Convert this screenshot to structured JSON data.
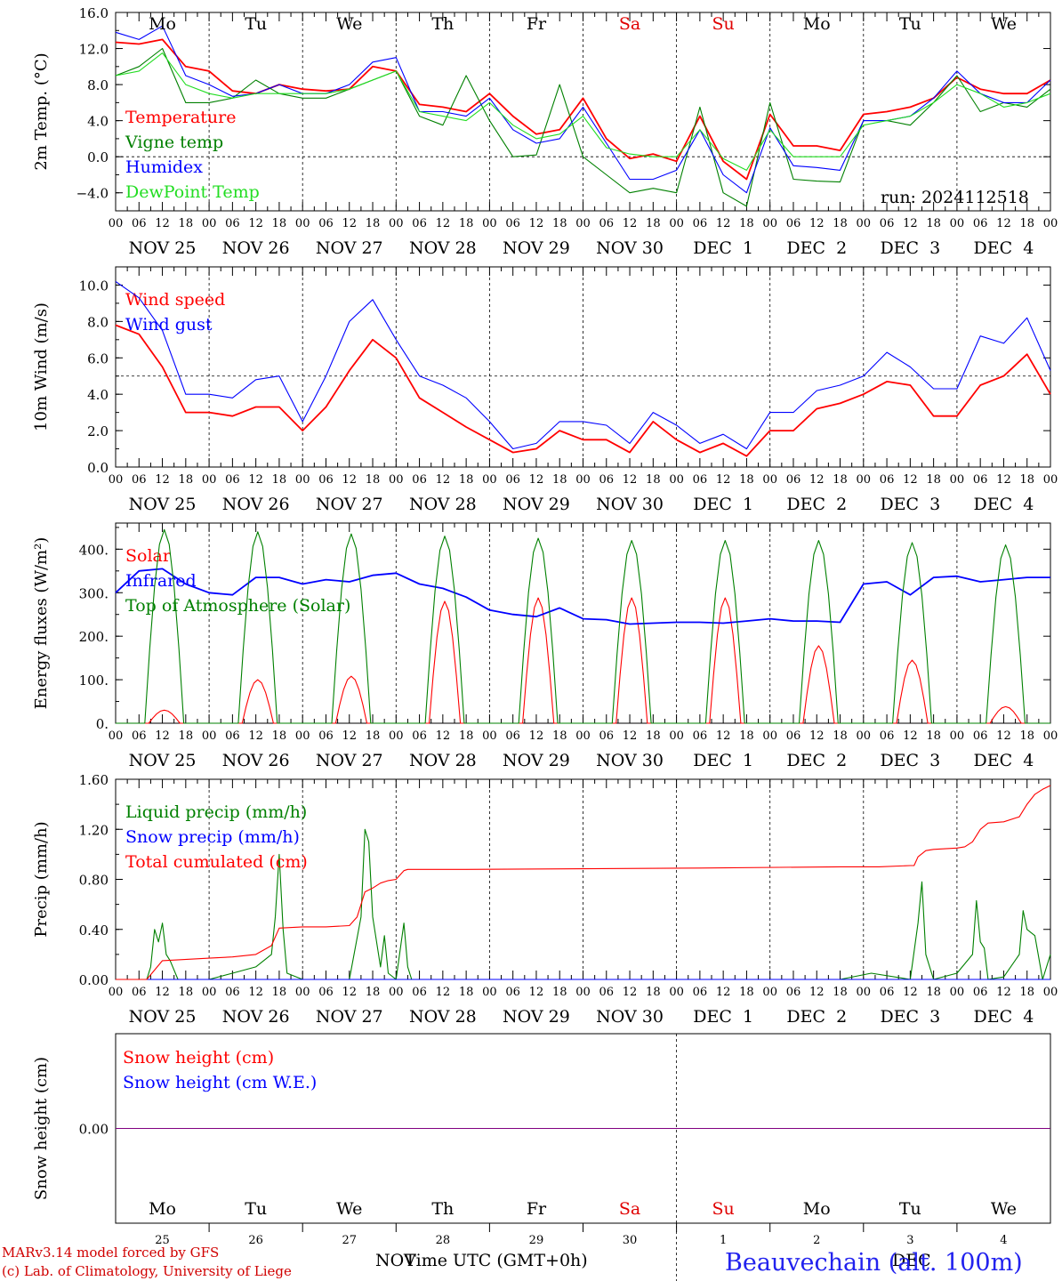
{
  "run_label": "run: 2024112518",
  "x_axis": {
    "title": "Time UTC (GMT+0h)",
    "hour_labels": [
      "00",
      "06",
      "12",
      "18"
    ],
    "date_labels": [
      "NOV 25",
      "NOV 26",
      "NOV 27",
      "NOV 28",
      "NOV 29",
      "NOV 30",
      "DEC  1",
      "DEC  2",
      "DEC  3",
      "DEC  4"
    ],
    "day_names": [
      "Mo",
      "Tu",
      "We",
      "Th",
      "Fr",
      "Sa",
      "Su",
      "Mo",
      "Tu",
      "We"
    ],
    "day_name_colors": [
      "#000000",
      "#000000",
      "#000000",
      "#000000",
      "#000000",
      "#e00000",
      "#e00000",
      "#000000",
      "#000000",
      "#000000"
    ],
    "day_numbers": [
      "25",
      "26",
      "27",
      "28",
      "29",
      "30",
      "1",
      "2",
      "3",
      "4"
    ],
    "month_labels": [
      "NOV",
      "DEC"
    ]
  },
  "footer": {
    "model": "MARv3.14 model forced by GFS",
    "lab": "(c) Lab. of Climatology, University of Liege",
    "station": "Beauvechain (alt. 100m)"
  },
  "colors": {
    "red": "#ff0000",
    "green": "#008000",
    "blue": "#0000ff",
    "lightgreen": "#22dd22",
    "purple": "#800080"
  },
  "chart_data": [
    {
      "type": "line",
      "ylabel": "2m Temp. (°C)",
      "yticks": [
        "16.0",
        "12.0",
        "8.0",
        "4.0",
        "0.0",
        "−4.0"
      ],
      "ylim": [
        -6,
        16
      ],
      "x_unit": "hours from 2024-11-25 00 UTC",
      "series": [
        {
          "name": "Temperature",
          "color": "#ff0000",
          "x": [
            0,
            6,
            12,
            18,
            24,
            30,
            36,
            42,
            48,
            54,
            60,
            66,
            72,
            78,
            84,
            90,
            96,
            102,
            108,
            114,
            120,
            126,
            132,
            138,
            144,
            150,
            156,
            162,
            168,
            174,
            180,
            186,
            192,
            198,
            204,
            210,
            216,
            222,
            228,
            234,
            240
          ],
          "values": [
            12.7,
            12.5,
            13,
            10,
            9.5,
            7.3,
            7,
            8,
            7.5,
            7.3,
            7.5,
            10,
            9.5,
            5.8,
            5.5,
            5,
            7,
            4.5,
            2.5,
            3,
            6.5,
            2,
            -0.2,
            0.3,
            -0.5,
            4.5,
            -0.5,
            -2.5,
            4.7,
            1.2,
            1.2,
            0.7,
            4.7,
            5,
            5.5,
            6.5,
            8.8,
            7.5,
            7,
            7,
            8.5
          ]
        },
        {
          "name": "Vigne temp",
          "color": "#008000",
          "x": [
            0,
            6,
            12,
            18,
            24,
            30,
            36,
            42,
            48,
            54,
            60,
            66,
            72,
            78,
            84,
            90,
            96,
            102,
            108,
            114,
            120,
            126,
            132,
            138,
            144,
            150,
            156,
            162,
            168,
            174,
            180,
            186,
            192,
            198,
            204,
            210,
            216,
            222,
            228,
            234,
            240
          ],
          "values": [
            9,
            10,
            12,
            6,
            6,
            6.5,
            8.5,
            7,
            6.5,
            6.5,
            7.5,
            8.5,
            9.5,
            4.5,
            3.5,
            9,
            4,
            0,
            0.2,
            8,
            0,
            -2,
            -4,
            -3.5,
            -4,
            5.5,
            -4,
            -5.5,
            6,
            -2.5,
            -2.7,
            -2.8,
            4,
            4,
            3.5,
            6,
            9,
            5,
            6,
            5.5,
            7.5
          ]
        },
        {
          "name": "Humidex",
          "color": "#0000ff",
          "x": [
            0,
            6,
            12,
            18,
            24,
            30,
            36,
            42,
            48,
            54,
            60,
            66,
            72,
            78,
            84,
            90,
            96,
            102,
            108,
            114,
            120,
            126,
            132,
            138,
            144,
            150,
            156,
            162,
            168,
            174,
            180,
            186,
            192,
            198,
            204,
            210,
            216,
            222,
            228,
            234,
            240
          ],
          "values": [
            13.8,
            13,
            14.5,
            9,
            8,
            6.7,
            7,
            8,
            7,
            7,
            8,
            10.5,
            11,
            5,
            5,
            4.5,
            6.5,
            3,
            1.5,
            2,
            5.5,
            1.5,
            -2.5,
            -2.5,
            -1.5,
            3,
            -2,
            -4,
            3.2,
            -1,
            -1.2,
            -1.5,
            4,
            4,
            4.5,
            6.5,
            9.5,
            7,
            6,
            6,
            8.5
          ]
        },
        {
          "name": "DewPoint Temp",
          "color": "#22dd22",
          "x": [
            0,
            6,
            12,
            18,
            24,
            30,
            36,
            42,
            48,
            54,
            60,
            66,
            72,
            78,
            84,
            90,
            96,
            102,
            108,
            114,
            120,
            126,
            132,
            138,
            144,
            150,
            156,
            162,
            168,
            174,
            180,
            186,
            192,
            198,
            204,
            210,
            216,
            222,
            228,
            234,
            240
          ],
          "values": [
            9,
            9.5,
            11.5,
            8,
            7,
            6.5,
            7,
            7,
            7,
            7,
            7.5,
            8.5,
            9.5,
            5,
            4.5,
            4,
            6,
            3.5,
            2,
            2.5,
            4.5,
            1,
            0.3,
            0,
            0,
            3,
            -0.2,
            -1.5,
            3,
            0,
            0,
            0,
            3.5,
            4,
            4.5,
            6,
            8,
            7,
            5.5,
            6,
            7
          ]
        }
      ]
    },
    {
      "type": "line",
      "ylabel": "10m Wind (m/s)",
      "yticks": [
        "10.0",
        "8.0",
        "6.0",
        "4.0",
        "2.0",
        "0.0"
      ],
      "ylim": [
        0,
        11
      ],
      "reference_line": 5,
      "series": [
        {
          "name": "Wind speed",
          "color": "#ff0000",
          "x": [
            0,
            6,
            12,
            18,
            24,
            30,
            36,
            42,
            48,
            54,
            60,
            66,
            72,
            78,
            84,
            90,
            96,
            102,
            108,
            114,
            120,
            126,
            132,
            138,
            144,
            150,
            156,
            162,
            168,
            174,
            180,
            186,
            192,
            198,
            204,
            210,
            216,
            222,
            228,
            234,
            240
          ],
          "values": [
            7.8,
            7.3,
            5.5,
            3,
            3,
            2.8,
            3.3,
            3.3,
            2,
            3.3,
            5.3,
            7,
            6,
            3.8,
            3,
            2.2,
            1.5,
            0.8,
            1,
            2,
            1.5,
            1.5,
            0.8,
            2.5,
            1.5,
            0.8,
            1.3,
            0.6,
            2,
            2,
            3.2,
            3.5,
            4,
            4.7,
            4.5,
            2.8,
            2.8,
            4.5,
            5,
            6.2,
            4
          ]
        },
        {
          "name": "Wind gust",
          "color": "#0000ff",
          "x": [
            0,
            6,
            12,
            18,
            24,
            30,
            36,
            42,
            48,
            54,
            60,
            66,
            72,
            78,
            84,
            90,
            96,
            102,
            108,
            114,
            120,
            126,
            132,
            138,
            144,
            150,
            156,
            162,
            168,
            174,
            180,
            186,
            192,
            198,
            204,
            210,
            216,
            222,
            228,
            234,
            240
          ],
          "values": [
            10.2,
            9.3,
            7.5,
            4,
            4,
            3.8,
            4.8,
            5,
            2.5,
            5,
            8,
            9.2,
            7,
            5,
            4.5,
            3.8,
            2.5,
            1,
            1.3,
            2.5,
            2.5,
            2.3,
            1.3,
            3,
            2.3,
            1.3,
            1.8,
            1,
            3,
            3,
            4.2,
            4.5,
            5,
            6.3,
            5.5,
            4.3,
            4.3,
            7.2,
            6.8,
            8.2,
            5.3
          ]
        }
      ]
    },
    {
      "type": "line",
      "ylabel": "Energy fluxes (W/m²)",
      "yticks": [
        "400.",
        "300.",
        "200.",
        "100.",
        "0."
      ],
      "ylim": [
        0,
        460
      ],
      "series": [
        {
          "name": "Solar",
          "color": "#ff0000",
          "peaks": [
            30,
            100,
            108,
            280,
            288,
            288,
            288,
            178,
            145,
            38
          ]
        },
        {
          "name": "Infrared",
          "color": "#0000ff",
          "x": [
            0,
            6,
            12,
            18,
            24,
            30,
            36,
            42,
            48,
            54,
            60,
            66,
            72,
            78,
            84,
            90,
            96,
            102,
            108,
            114,
            120,
            126,
            132,
            138,
            144,
            150,
            156,
            162,
            168,
            174,
            180,
            186,
            192,
            198,
            204,
            210,
            216,
            222,
            228,
            234,
            240
          ],
          "values": [
            300,
            350,
            355,
            320,
            300,
            295,
            335,
            335,
            320,
            330,
            325,
            340,
            345,
            320,
            310,
            290,
            260,
            250,
            245,
            265,
            240,
            238,
            228,
            230,
            232,
            232,
            230,
            235,
            240,
            235,
            235,
            232,
            320,
            325,
            295,
            335,
            338,
            325,
            330,
            335,
            335
          ]
        },
        {
          "name": "Top of Atmosphere (Solar)",
          "color": "#008000",
          "peaks": [
            445,
            440,
            435,
            430,
            425,
            420,
            420,
            420,
            415,
            410
          ]
        }
      ]
    },
    {
      "type": "line",
      "ylabel": "Precip (mm/h)",
      "yticks": [
        "1.60",
        "1.20",
        "0.80",
        "0.40",
        "0.00"
      ],
      "ylim": [
        0,
        1.6
      ],
      "series": [
        {
          "name": "Liquid precip (mm/h)",
          "color": "#008000",
          "x": [
            0,
            8,
            9,
            10,
            11,
            12,
            13,
            14,
            16,
            24,
            30,
            36,
            40,
            41,
            42,
            43,
            44,
            48,
            52,
            60,
            63,
            64,
            65,
            66,
            68,
            69,
            70,
            72,
            74,
            75,
            76,
            78,
            90,
            150,
            186,
            194,
            204,
            206,
            207,
            208,
            210,
            216,
            220,
            221,
            222,
            223,
            224,
            228,
            232,
            233,
            234,
            236,
            238,
            240
          ],
          "values": [
            0,
            0,
            0.1,
            0.4,
            0.3,
            0.45,
            0.2,
            0.15,
            0,
            0,
            0.05,
            0.1,
            0.2,
            0.5,
            1,
            0.4,
            0.05,
            0,
            0,
            0,
            0.5,
            1.2,
            1.1,
            0.5,
            0.1,
            0.35,
            0.05,
            0,
            0.45,
            0.1,
            0,
            0,
            0,
            0,
            0,
            0.05,
            0,
            0.45,
            0.78,
            0.2,
            0,
            0.05,
            0.2,
            0.63,
            0.3,
            0.25,
            0,
            0.02,
            0.2,
            0.55,
            0.4,
            0.35,
            0,
            0.2
          ]
        },
        {
          "name": "Snow precip (mm/h)",
          "color": "#0000ff",
          "x": [
            0,
            240
          ],
          "values": [
            0,
            0
          ]
        },
        {
          "name": "Total cumulated (cm)",
          "color": "#ff0000",
          "x": [
            0,
            8,
            12,
            24,
            30,
            36,
            40,
            42,
            48,
            54,
            60,
            62,
            64,
            66,
            68,
            70,
            72,
            74,
            75,
            76,
            78,
            90,
            150,
            186,
            196,
            204,
            205,
            206,
            208,
            210,
            216,
            218,
            220,
            222,
            224,
            228,
            232,
            234,
            236,
            238,
            240
          ],
          "values": [
            0,
            0,
            0.15,
            0.17,
            0.18,
            0.2,
            0.27,
            0.41,
            0.42,
            0.42,
            0.43,
            0.5,
            0.7,
            0.73,
            0.77,
            0.79,
            0.8,
            0.87,
            0.88,
            0.88,
            0.88,
            0.88,
            0.89,
            0.9,
            0.9,
            0.91,
            0.91,
            0.98,
            1.03,
            1.04,
            1.05,
            1.06,
            1.1,
            1.2,
            1.25,
            1.26,
            1.3,
            1.4,
            1.48,
            1.52,
            1.55
          ]
        }
      ]
    },
    {
      "type": "line",
      "ylabel": "Snow height (cm)",
      "yticks": [
        "0.00"
      ],
      "series": [
        {
          "name": "Snow height (cm)",
          "color": "#ff0000",
          "x": [
            0,
            240
          ],
          "values": [
            0,
            0
          ]
        },
        {
          "name": "Snow height (cm W.E.)",
          "color": "#0000ff",
          "x": [
            0,
            240
          ],
          "values": [
            0,
            0
          ]
        }
      ]
    }
  ]
}
